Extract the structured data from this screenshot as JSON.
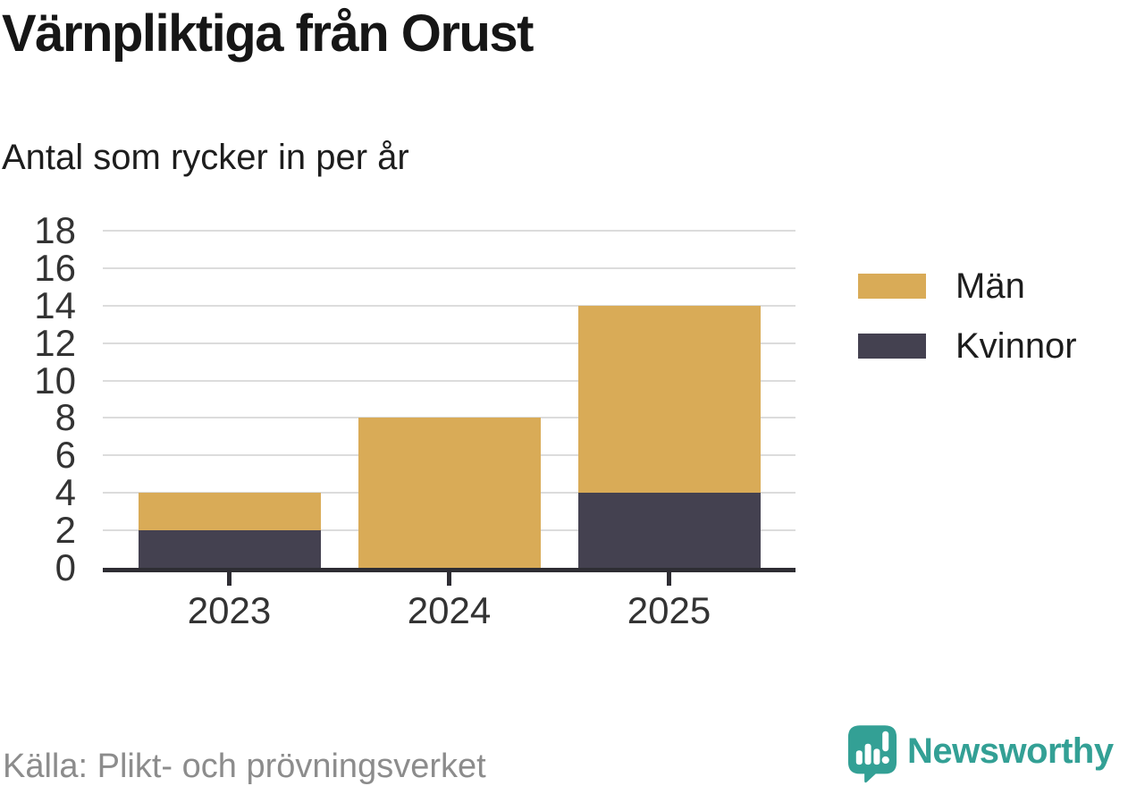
{
  "header": {
    "title": "Värnpliktiga från Orust",
    "subtitle": "Antal som rycker in per år"
  },
  "chart_data": {
    "type": "bar",
    "stacked": true,
    "title": "Värnpliktiga från Orust",
    "subtitle": "Antal som rycker in per år",
    "categories": [
      "2023",
      "2024",
      "2025"
    ],
    "series": [
      {
        "name": "Män",
        "color": "#d9ab57",
        "values": [
          2,
          8,
          10
        ]
      },
      {
        "name": "Kvinnor",
        "color": "#444150",
        "values": [
          2,
          0,
          4
        ]
      }
    ],
    "stack_bottom_to_top": [
      "Kvinnor",
      "Män"
    ],
    "totals": [
      4,
      8,
      14
    ],
    "xlabel": "",
    "ylabel": "",
    "ylim": [
      0,
      18
    ],
    "ytick_step": 2,
    "yticks": [
      0,
      2,
      4,
      6,
      8,
      10,
      12,
      14,
      16,
      18
    ],
    "grid": true,
    "legend_position": "right"
  },
  "footer": {
    "source": "Källa: Plikt- och prövningsverket",
    "brand": "Newsworthy"
  },
  "colors": {
    "men": "#d9ab57",
    "women": "#444150",
    "brand_teal": "#33a095",
    "grid": "#dcdcdc",
    "axis": "#2e2d33",
    "text": "#1d1d1d",
    "muted": "#8c8c8c"
  }
}
